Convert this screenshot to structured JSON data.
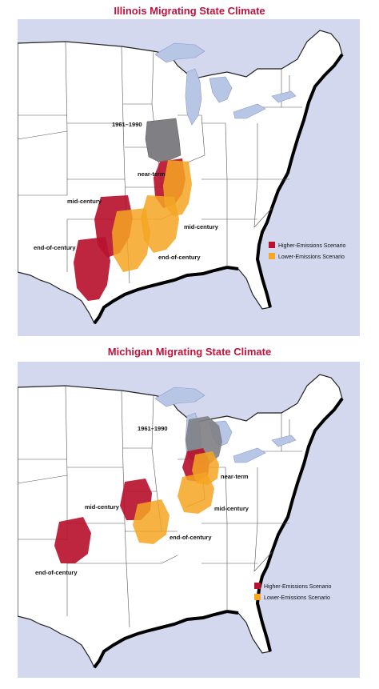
{
  "maps": [
    {
      "title": "Illinois Migrating State Climate",
      "labels": {
        "baseline": "1961–1990",
        "near_term": "near-term",
        "mid_century_high": "mid-century",
        "mid_century_low": "mid-century",
        "end_century_high": "end-of-century",
        "end_century_low": "end-of-century"
      },
      "legend": {
        "higher": "Higher-Emissions Scenario",
        "lower": "Lower-Emissions Scenario"
      }
    },
    {
      "title": "Michigan Migrating State Climate",
      "labels": {
        "baseline": "1961–1990",
        "near_term": "near-term",
        "mid_century_high": "mid-century",
        "mid_century_low": "mid-century",
        "end_century_high": "end-of-century",
        "end_century_low": "end-of-century"
      },
      "legend": {
        "higher": "Higher-Emissions Scenario",
        "lower": "Lower-Emissions Scenario"
      }
    }
  ],
  "colors": {
    "higher": "#b8122e",
    "lower": "#f5a623",
    "baseline": "#7f7f84",
    "water": "#b8c6e6",
    "background": "#d3d8ee",
    "title": "#c0143c"
  }
}
